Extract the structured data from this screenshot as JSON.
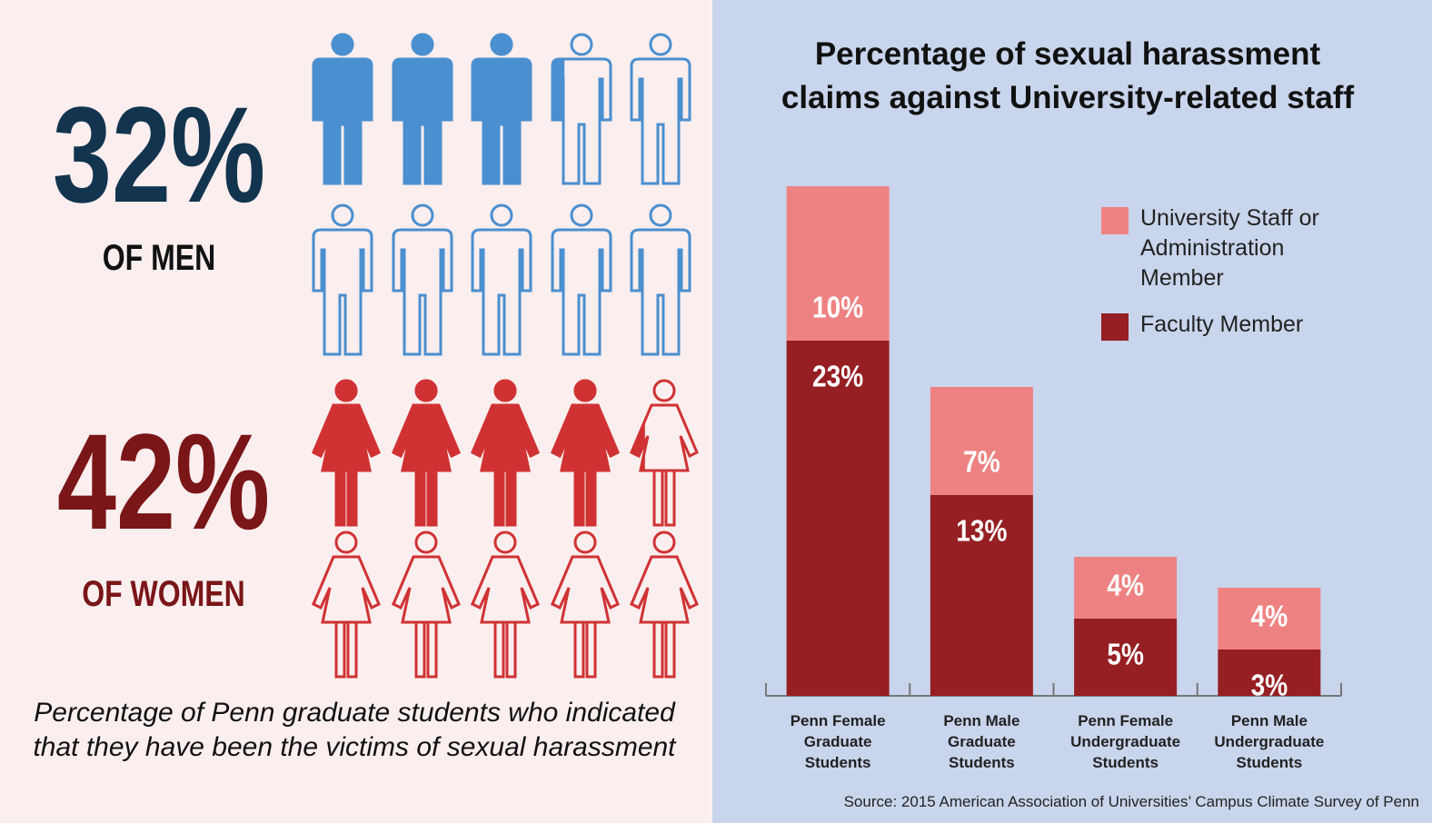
{
  "men": {
    "value": 32,
    "label": "32%",
    "caption": "OF MEN",
    "color": "#4a8fcf"
  },
  "women": {
    "value": 42,
    "label": "42%",
    "caption": "OF WOMEN",
    "color": "#d03234"
  },
  "caption": "Percentage of Penn graduate students who indicated that they have been the victims of sexual harassment",
  "chart_data": {
    "type": "bar",
    "stacked": true,
    "title": "Percentage of sexual harassment claims against University-related staff",
    "categories": [
      "Penn Female Graduate Students",
      "Penn Male Graduate Students",
      "Penn Female Undergraduate Students",
      "Penn Male Undergraduate Students"
    ],
    "series": [
      {
        "name": "Faculty Member",
        "color": "#951f22",
        "values": [
          23,
          13,
          5,
          3
        ],
        "value_labels": [
          "23%",
          "13%",
          "5%",
          "3%"
        ]
      },
      {
        "name": "University Staff or Administration Member",
        "color": "#ee8282",
        "values": [
          10,
          7,
          4,
          4
        ],
        "value_labels": [
          "10%",
          "7%",
          "4%",
          "4%"
        ]
      }
    ],
    "source": "Source: 2015 American Association of Universities’ Campus Climate Survey of Penn"
  }
}
